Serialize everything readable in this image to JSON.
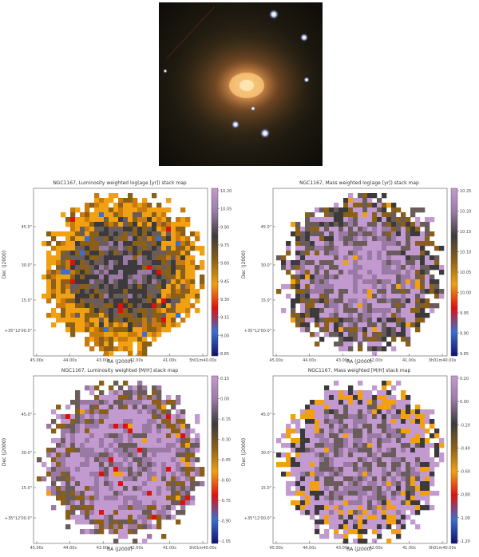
{
  "galaxy_image": {
    "description_icon": "galaxy-photo"
  },
  "panels": [
    {
      "title": "NGC1167, Luminosity weighted log(age [yr]) stack map",
      "xlabel": "RA (J2000)",
      "ylabel": "Dec (J2000)",
      "xticks": [
        "45.00s",
        "44.00s",
        "43.00s",
        "42.00s",
        "41.00s",
        "3h01m40.00s"
      ],
      "yticks": [
        "45.0\"",
        "30.0\"",
        "15.0\"",
        "+35°12'00.0\""
      ],
      "cbar_ticks": [
        "10.20",
        "10.05",
        "9.90",
        "9.75",
        "9.60",
        "9.45",
        "9.30",
        "9.15",
        "9.00",
        "8.85"
      ],
      "palette": "lum_age"
    },
    {
      "title": "NGC1167, Mass weighted log(age [yr]) stack map",
      "xlabel": "RA (J2000)",
      "ylabel": "Dec (J2000)",
      "xticks": [
        "45.00s",
        "44.00s",
        "43.00s",
        "42.00s",
        "41.00s",
        "3h01m40.00s"
      ],
      "yticks": [
        "45.0\"",
        "30.0\"",
        "15.0\"",
        "+35°12'00.0\""
      ],
      "cbar_ticks": [
        "10.25",
        "10.20",
        "10.15",
        "10.10",
        "10.05",
        "10.00",
        "9.95",
        "9.90",
        "9.85"
      ],
      "palette": "mass_age"
    },
    {
      "title": "NGC1167, Luminosity weighted [M/H] stack map",
      "xlabel": "RA (J2000)",
      "ylabel": "Dec (J2000)",
      "xticks": [
        "45.00s",
        "44.00s",
        "43.00s",
        "42.00s",
        "41.00s",
        "3h01m40.00s"
      ],
      "yticks": [
        "45.0\"",
        "30.0\"",
        "15.0\"",
        "+35°12'00.0\""
      ],
      "cbar_ticks": [
        "0.15",
        "0.00",
        "-0.15",
        "-0.30",
        "-0.45",
        "-0.60",
        "-0.75",
        "-0.90",
        "-1.05"
      ],
      "palette": "lum_mh"
    },
    {
      "title": "NGC1167, Mass weighted [M/H] stack map",
      "xlabel": "RA (J2000)",
      "ylabel": "Dec (J2000)",
      "xticks": [
        "45.00s",
        "44.00s",
        "43.00s",
        "42.00s",
        "41.00s",
        "3h01m40.00s"
      ],
      "yticks": [
        "45.0\"",
        "30.0\"",
        "15.0\"",
        "+35°12'00.0\""
      ],
      "cbar_ticks": [
        "0.20",
        "0.00",
        "-0.20",
        "-0.40",
        "-0.60",
        "-0.80",
        "-1.00",
        "-1.20"
      ],
      "palette": "mass_mh"
    }
  ],
  "colors": {
    "purple": "#c39ad0",
    "purple_dark": "#9a7aa5",
    "gray_dark": "#3c3a3c",
    "gray_mid": "#6a5c5a",
    "brown": "#8a6018",
    "orange": "#f0a010",
    "orange_dark": "#c87a10",
    "red": "#e01010",
    "blue": "#3a70d0",
    "navy": "#101070"
  }
}
